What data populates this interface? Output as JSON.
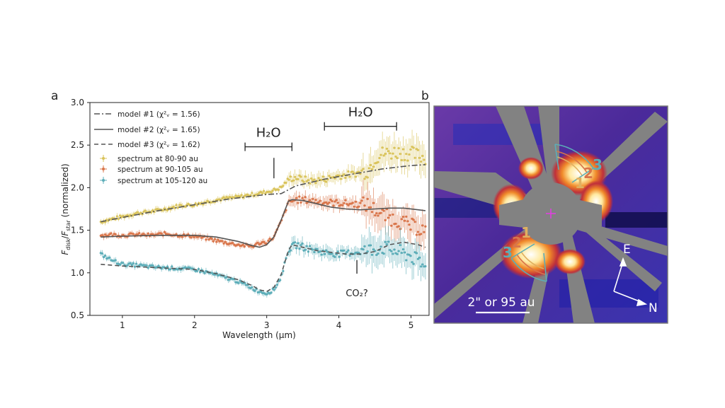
{
  "panel_a_letter": "a",
  "panel_b_letter": "b",
  "chart_data": {
    "type": "scatter",
    "xlabel": "Wavelength (μm)",
    "ylabel": "F_disk/F_star (normalized)",
    "ylabel_parts": {
      "F1": "F",
      "sub1": "disk",
      "slash": "/",
      "F2": "F",
      "sub2": "star",
      "tail": " (normalized)"
    },
    "xlim": [
      0.55,
      5.25
    ],
    "ylim": [
      0.5,
      3.0
    ],
    "xticks": [
      1,
      2,
      3,
      4,
      5
    ],
    "yticks": [
      "0.5",
      "1.0",
      "1.5",
      "2.0",
      "2.5",
      "3.0"
    ],
    "grid": false,
    "legend_position": "top-left",
    "legend": [
      {
        "text": "model #1 (χ²ᵥ = 1.56)",
        "style": "dashdot"
      },
      {
        "text": "model #2 (χ²ᵥ = 1.65)",
        "style": "solid"
      },
      {
        "text": "model #3 (χ²ᵥ = 1.62)",
        "style": "dashed"
      },
      {
        "text": "spectrum at 80-90 au",
        "style": "marker",
        "color": "#d9c35a"
      },
      {
        "text": "spectrum at 90-105 au",
        "style": "marker",
        "color": "#d9754a"
      },
      {
        "text": "spectrum at 105-120 au",
        "style": "marker",
        "color": "#5cadb8"
      }
    ],
    "annotations": [
      {
        "text": "H₂O",
        "x_range": [
          2.7,
          3.35
        ],
        "y_bar": 2.48,
        "tick_x": 3.1,
        "tick_y": [
          2.11,
          2.35
        ]
      },
      {
        "text": "H₂O",
        "x_range": [
          3.8,
          4.8
        ],
        "y_bar": 2.72
      },
      {
        "text": "CO₂?",
        "tick_x": 4.25,
        "tick_y": [
          0.99,
          1.15
        ]
      }
    ],
    "series": [
      {
        "name": "spectrum at 80-90 au",
        "color": "#d9c35a",
        "x": [
          0.7,
          0.85,
          1.0,
          1.2,
          1.4,
          1.6,
          1.8,
          2.0,
          2.2,
          2.4,
          2.6,
          2.8,
          3.0,
          3.1,
          3.2,
          3.3,
          3.4,
          3.6,
          3.8,
          4.0,
          4.2,
          4.4,
          4.5,
          4.6,
          4.8,
          5.0,
          5.2
        ],
        "y": [
          1.6,
          1.63,
          1.66,
          1.7,
          1.72,
          1.75,
          1.79,
          1.8,
          1.84,
          1.87,
          1.89,
          1.92,
          1.95,
          1.97,
          2.0,
          2.1,
          2.12,
          2.08,
          2.1,
          2.14,
          2.16,
          2.2,
          2.35,
          2.4,
          2.42,
          2.4,
          2.35
        ]
      },
      {
        "name": "spectrum at 90-105 au",
        "color": "#d9754a",
        "x": [
          0.7,
          0.85,
          1.0,
          1.2,
          1.4,
          1.6,
          1.8,
          2.0,
          2.2,
          2.4,
          2.6,
          2.8,
          2.9,
          3.0,
          3.1,
          3.2,
          3.3,
          3.4,
          3.6,
          3.8,
          4.0,
          4.2,
          4.4,
          4.6,
          4.8,
          5.0,
          5.2
        ],
        "y": [
          1.44,
          1.45,
          1.44,
          1.45,
          1.44,
          1.46,
          1.44,
          1.43,
          1.4,
          1.36,
          1.33,
          1.31,
          1.35,
          1.36,
          1.42,
          1.6,
          1.82,
          1.86,
          1.85,
          1.83,
          1.82,
          1.81,
          1.8,
          1.68,
          1.62,
          1.55,
          1.5
        ]
      },
      {
        "name": "spectrum at 105-120 au",
        "color": "#5cadb8",
        "x": [
          0.7,
          0.85,
          1.0,
          1.2,
          1.4,
          1.6,
          1.8,
          2.0,
          2.2,
          2.4,
          2.6,
          2.8,
          2.9,
          3.0,
          3.1,
          3.2,
          3.3,
          3.4,
          3.6,
          3.8,
          4.0,
          4.2,
          4.4,
          4.6,
          4.8,
          5.0,
          5.2
        ],
        "y": [
          1.22,
          1.15,
          1.1,
          1.09,
          1.07,
          1.06,
          1.05,
          1.04,
          1.0,
          0.95,
          0.9,
          0.82,
          0.78,
          0.76,
          0.8,
          0.95,
          1.27,
          1.33,
          1.28,
          1.24,
          1.22,
          1.24,
          1.26,
          1.3,
          1.25,
          1.2,
          1.05
        ]
      },
      {
        "name": "model #1",
        "color": "#555555",
        "dash": "8 3 2 3",
        "x": [
          0.7,
          1.0,
          1.5,
          2.0,
          2.5,
          3.0,
          3.2,
          3.4,
          3.6,
          3.8,
          4.0,
          4.2,
          4.4,
          4.6,
          4.8,
          5.0,
          5.2
        ],
        "y": [
          1.6,
          1.65,
          1.73,
          1.8,
          1.87,
          1.92,
          1.93,
          2.02,
          2.06,
          2.1,
          2.13,
          2.16,
          2.19,
          2.22,
          2.24,
          2.26,
          2.27
        ]
      },
      {
        "name": "model #2",
        "color": "#555555",
        "dash": "",
        "x": [
          0.7,
          1.0,
          1.5,
          2.0,
          2.3,
          2.6,
          2.8,
          2.9,
          3.0,
          3.1,
          3.2,
          3.3,
          3.35,
          3.5,
          3.7,
          3.9,
          4.1,
          4.3,
          4.5,
          4.7,
          4.9,
          5.1,
          5.2
        ],
        "y": [
          1.42,
          1.43,
          1.44,
          1.44,
          1.42,
          1.37,
          1.32,
          1.3,
          1.33,
          1.42,
          1.62,
          1.84,
          1.86,
          1.85,
          1.81,
          1.77,
          1.75,
          1.74,
          1.75,
          1.76,
          1.76,
          1.74,
          1.73
        ]
      },
      {
        "name": "model #3",
        "color": "#555555",
        "dash": "6 4",
        "x": [
          0.7,
          1.0,
          1.5,
          2.0,
          2.3,
          2.6,
          2.8,
          2.9,
          3.0,
          3.1,
          3.2,
          3.3,
          3.35,
          3.5,
          3.7,
          3.9,
          4.1,
          4.3,
          4.5,
          4.7,
          4.9,
          5.1,
          5.2
        ],
        "y": [
          1.1,
          1.08,
          1.06,
          1.04,
          0.99,
          0.92,
          0.85,
          0.8,
          0.78,
          0.83,
          0.98,
          1.26,
          1.33,
          1.3,
          1.26,
          1.24,
          1.22,
          1.22,
          1.25,
          1.33,
          1.36,
          1.33,
          1.3
        ]
      }
    ]
  },
  "image_panel": {
    "scale_label": "2\" or 95 au",
    "arrow_E": "E",
    "arrow_N": "N",
    "region_labels_left": [
      "3",
      "2",
      "1"
    ],
    "region_labels_right": [
      "1",
      "2",
      "3"
    ],
    "region_colors": [
      "#e0b060",
      "#d9754a",
      "#5cadb8"
    ],
    "center_marker_color": "#e040e0"
  }
}
